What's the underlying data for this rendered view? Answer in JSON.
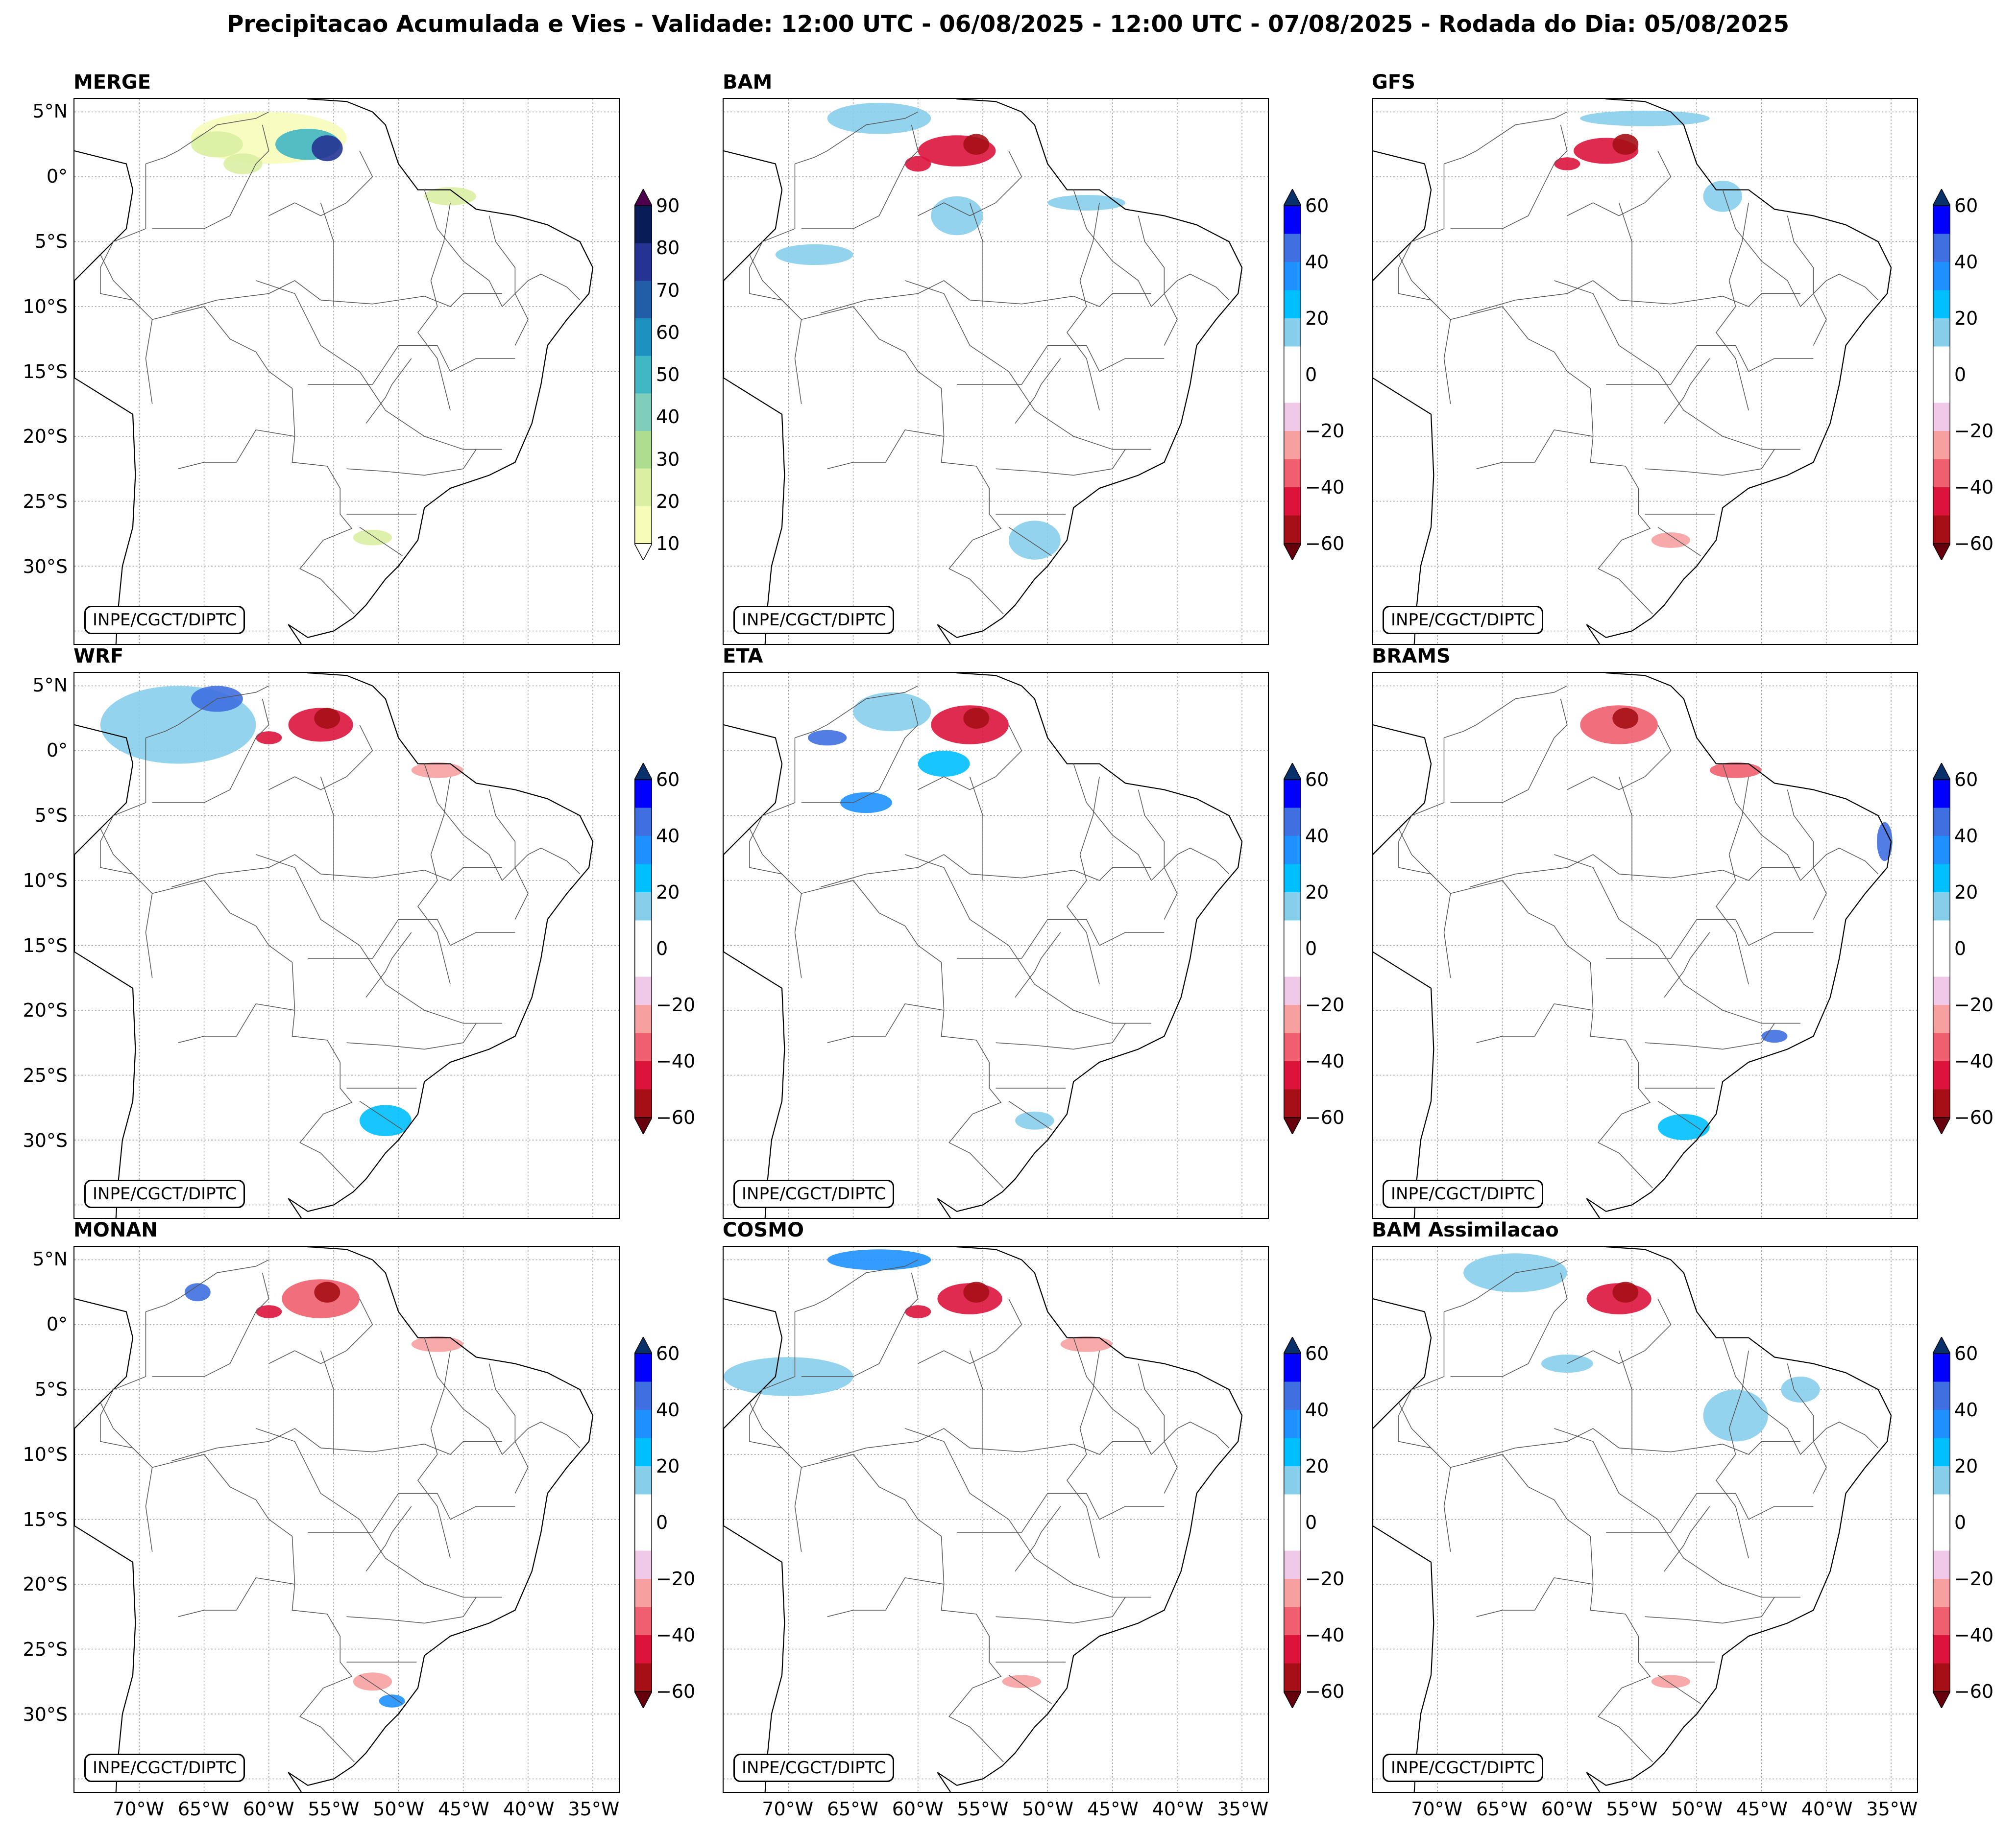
{
  "title": "Precipitacao Acumulada e Vies - Validade: 12:00 UTC - 06/08/2025 - 12:00 UTC - 07/08/2025 - Rodada do Dia: 05/08/2025",
  "credit": "INPE/CGCT/DIPTC",
  "lat_labels": [
    "5°N",
    "0°",
    "5°S",
    "10°S",
    "15°S",
    "20°S",
    "25°S",
    "30°S"
  ],
  "lon_labels": [
    "70°W",
    "65°W",
    "60°W",
    "55°W",
    "50°W",
    "45°W",
    "40°W",
    "35°W"
  ],
  "precip_colorbar": {
    "ticks": [
      "10",
      "20",
      "30",
      "40",
      "50",
      "60",
      "70",
      "80",
      "90"
    ],
    "colors": [
      "#f7fcb9",
      "#d9f0a3",
      "#addd8e",
      "#7fcdbb",
      "#41b6c4",
      "#1d91c0",
      "#225ea8",
      "#253494",
      "#081d58"
    ],
    "over_color": "#4d004b",
    "under_color": "#ffffff"
  },
  "bias_colorbar": {
    "ticks": [
      "60",
      "40",
      "20",
      "0",
      "−20",
      "−40",
      "−60"
    ],
    "colors_top_to_bottom": [
      "#0000ff",
      "#3f6fe0",
      "#1e90ff",
      "#00bfff",
      "#87ceeb",
      "#ffffff",
      "#ffffff",
      "#f0c8e8",
      "#f7a0a0",
      "#ef5f6f",
      "#dc143c",
      "#a50f15"
    ],
    "over_color": "#08306b",
    "under_color": "#67000d"
  },
  "panels": [
    {
      "name": "MERGE",
      "type": "precip"
    },
    {
      "name": "BAM",
      "type": "bias"
    },
    {
      "name": "GFS",
      "type": "bias"
    },
    {
      "name": "WRF",
      "type": "bias"
    },
    {
      "name": "ETA",
      "type": "bias"
    },
    {
      "name": "BRAMS",
      "type": "bias"
    },
    {
      "name": "MONAN",
      "type": "bias"
    },
    {
      "name": "COSMO",
      "type": "bias"
    },
    {
      "name": "BAM Assimilacao",
      "type": "bias"
    }
  ]
}
